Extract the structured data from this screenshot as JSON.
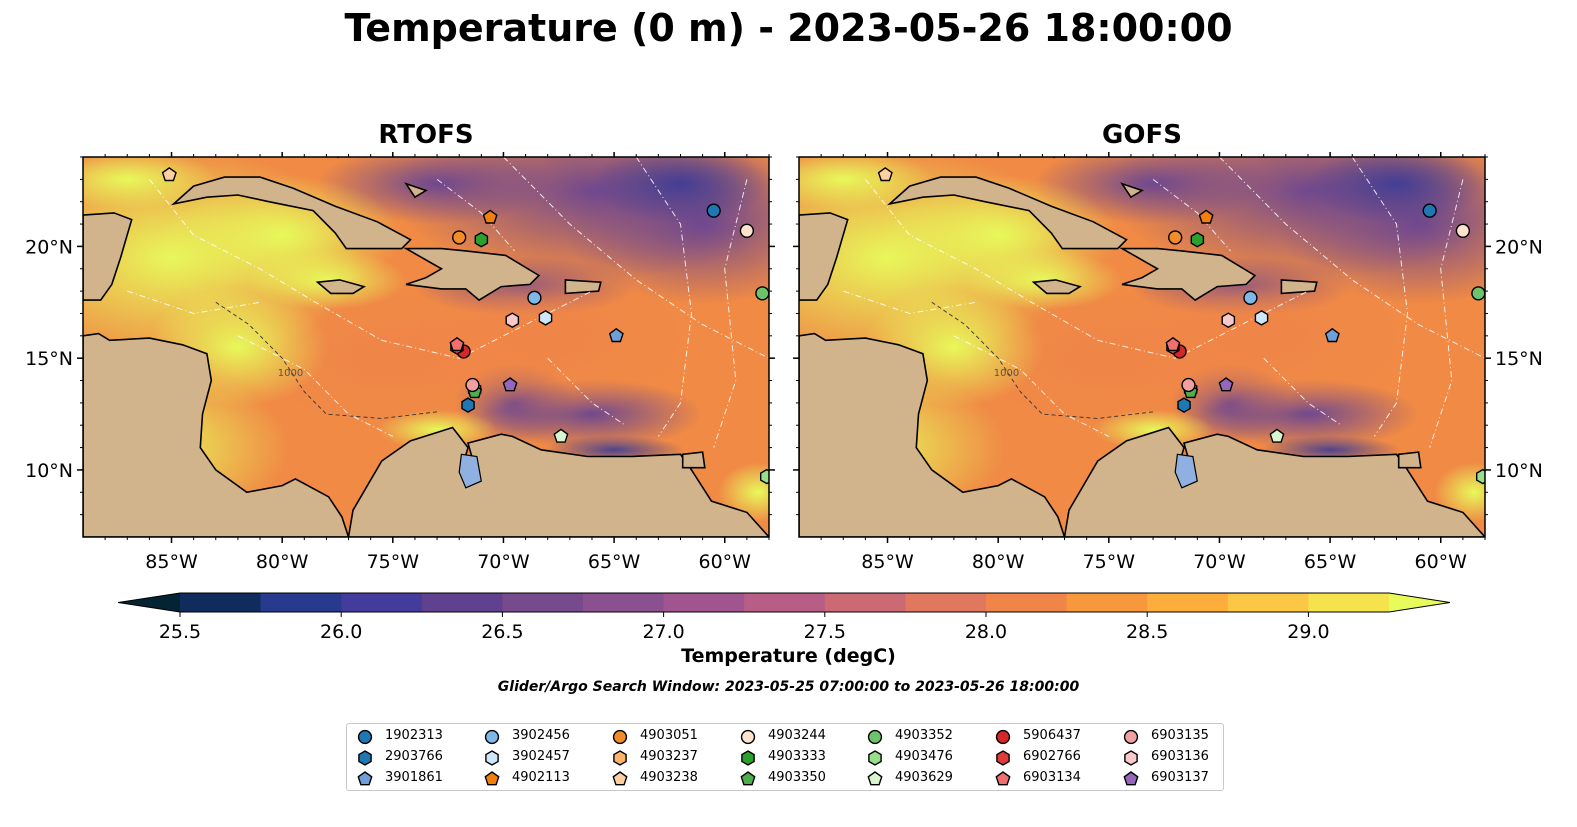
{
  "title": "Temperature (0 m) - 2023-05-26 18:00:00",
  "colorbar": {
    "label": "Temperature (degC)",
    "ticks": [
      "25.5",
      "26.0",
      "26.5",
      "27.0",
      "27.5",
      "28.0",
      "28.5",
      "29.0"
    ],
    "min": 25.5,
    "max": 29.25,
    "step": 0.25,
    "extend": "both",
    "colors": [
      "#042333",
      "#0f2c5c",
      "#283a8e",
      "#443c9c",
      "#5f4190",
      "#774a8e",
      "#8b5090",
      "#a15590",
      "#b85e86",
      "#cc6a73",
      "#e0775f",
      "#ef8549",
      "#f8983c",
      "#fdad3c",
      "#fbc744",
      "#f5e34e",
      "#e8fb5a"
    ]
  },
  "search_window": "Glider/Argo Search Window: 2023-05-25 07:00:00 to 2023-05-26 18:00:00",
  "chart_data": [
    {
      "type": "heatmap",
      "title": "RTOFS",
      "xlim": [
        -89,
        -58
      ],
      "ylim": [
        7,
        24
      ],
      "xticks": [
        "85°W",
        "80°W",
        "75°W",
        "70°W",
        "65°W",
        "60°W"
      ],
      "yticks": [
        "20°N",
        "15°N",
        "10°N"
      ],
      "ytick_side": "left",
      "contour_label": "1000"
    },
    {
      "type": "heatmap",
      "title": "GOFS",
      "xlim": [
        -89,
        -58
      ],
      "ylim": [
        7,
        24
      ],
      "xticks": [
        "85°W",
        "80°W",
        "75°W",
        "70°W",
        "65°W",
        "60°W"
      ],
      "yticks": [
        "20°N",
        "15°N",
        "10°N"
      ],
      "ytick_side": "right",
      "contour_label": "1000"
    }
  ],
  "floats": [
    {
      "id": "1902313",
      "marker": "circle",
      "color": "#1f77b4",
      "lon": -60.5,
      "lat": 21.6
    },
    {
      "id": "2903766",
      "marker": "hexagon",
      "color": "#1f77b4",
      "lon": -71.6,
      "lat": 12.9
    },
    {
      "id": "3901861",
      "marker": "pentagon",
      "color": "#6e9fd8",
      "lon": -64.9,
      "lat": 16.0
    },
    {
      "id": "3902456",
      "marker": "circle",
      "color": "#7fb7e6",
      "lon": -68.6,
      "lat": 17.7
    },
    {
      "id": "3902457",
      "marker": "hexagon",
      "color": "#cfe7fb",
      "lon": -68.1,
      "lat": 16.8
    },
    {
      "id": "4902113",
      "marker": "pentagon",
      "color": "#f07f0e",
      "lon": -70.6,
      "lat": 21.3
    },
    {
      "id": "4903051",
      "marker": "circle",
      "color": "#f28c28",
      "lon": -72.0,
      "lat": 20.4
    },
    {
      "id": "4903237",
      "marker": "hexagon",
      "color": "#fdb36b",
      "lon": -71.3,
      "lat": 13.6
    },
    {
      "id": "4903238",
      "marker": "pentagon",
      "color": "#fdd0a2",
      "lon": -85.1,
      "lat": 23.2
    },
    {
      "id": "4903244",
      "marker": "circle",
      "color": "#fde3cc",
      "lon": -59.0,
      "lat": 20.7
    },
    {
      "id": "4903333",
      "marker": "hexagon",
      "color": "#2ca02c",
      "lon": -71.0,
      "lat": 20.3
    },
    {
      "id": "4903350",
      "marker": "pentagon",
      "color": "#4cae4c",
      "lon": -71.3,
      "lat": 13.5
    },
    {
      "id": "4903352",
      "marker": "circle",
      "color": "#6cc36c",
      "lon": -58.3,
      "lat": 17.9
    },
    {
      "id": "4903476",
      "marker": "hexagon",
      "color": "#98df8a",
      "lon": -58.1,
      "lat": 9.7
    },
    {
      "id": "4903629",
      "marker": "pentagon",
      "color": "#d9f5d0",
      "lon": -67.4,
      "lat": 11.5
    },
    {
      "id": "5906437",
      "marker": "circle",
      "color": "#d62728",
      "lon": -71.8,
      "lat": 15.3
    },
    {
      "id": "6902766",
      "marker": "hexagon",
      "color": "#e03a3a",
      "lon": -72.1,
      "lat": 15.5
    },
    {
      "id": "6903134",
      "marker": "pentagon",
      "color": "#f07070",
      "lon": -72.1,
      "lat": 15.6
    },
    {
      "id": "6903135",
      "marker": "circle",
      "color": "#f0a0a0",
      "lon": -71.4,
      "lat": 13.8
    },
    {
      "id": "6903136",
      "marker": "hexagon",
      "color": "#f9c9c9",
      "lon": -69.6,
      "lat": 16.7
    },
    {
      "id": "6903137",
      "marker": "pentagon",
      "color": "#9467bd",
      "lon": -69.7,
      "lat": 13.8
    }
  ]
}
